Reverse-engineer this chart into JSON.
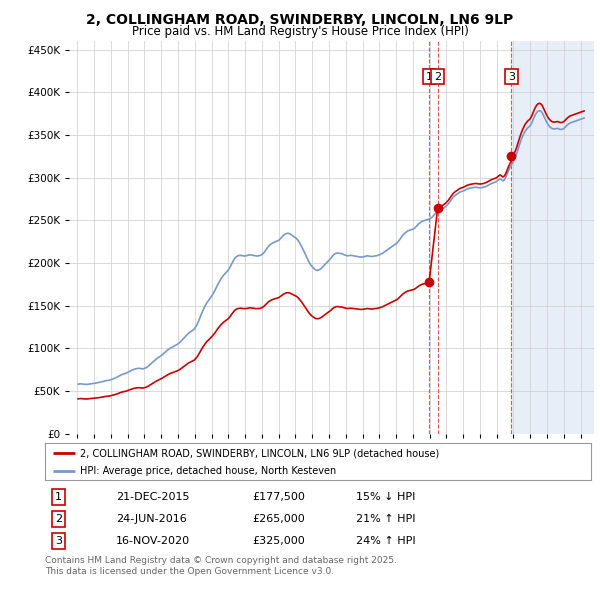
{
  "title": "2, COLLINGHAM ROAD, SWINDERBY, LINCOLN, LN6 9LP",
  "subtitle": "Price paid vs. HM Land Registry's House Price Index (HPI)",
  "title_fontsize": 10,
  "subtitle_fontsize": 8.5,
  "background_color": "#ffffff",
  "plot_bg_color": "#ffffff",
  "shade_bg_color": "#e8eef8",
  "ylim": [
    0,
    460000
  ],
  "yticks": [
    0,
    50000,
    100000,
    150000,
    200000,
    250000,
    300000,
    350000,
    400000,
    450000
  ],
  "xmin": 1994.5,
  "xmax": 2025.8,
  "grid_color": "#cccccc",
  "red_line_color": "#cc0000",
  "blue_line_color": "#7799cc",
  "annotation_box_color": "#cc0000",
  "dashed_line_color": "#dd4444",
  "transactions": [
    {
      "id": 1,
      "year": 2015.97,
      "price": 177500
    },
    {
      "id": 2,
      "year": 2016.48,
      "price": 265000
    },
    {
      "id": 3,
      "year": 2020.88,
      "price": 325000
    }
  ],
  "shade_start": 2020.88,
  "table_rows": [
    [
      1,
      "21-DEC-2015",
      "£177,500",
      "15% ↓ HPI"
    ],
    [
      2,
      "24-JUN-2016",
      "£265,000",
      "21% ↑ HPI"
    ],
    [
      3,
      "16-NOV-2020",
      "£325,000",
      "24% ↑ HPI"
    ]
  ],
  "legend_red_label": "2, COLLINGHAM ROAD, SWINDERBY, LINCOLN, LN6 9LP (detached house)",
  "legend_blue_label": "HPI: Average price, detached house, North Kesteven",
  "footer_text": "Contains HM Land Registry data © Crown copyright and database right 2025.\nThis data is licensed under the Open Government Licence v3.0.",
  "hpi_index": {
    "1995-01": 100.0,
    "1995-02": 100.5,
    "1995-03": 100.8,
    "1995-04": 100.3,
    "1995-05": 100.1,
    "1995-06": 99.8,
    "1995-07": 99.5,
    "1995-08": 99.9,
    "1995-09": 100.2,
    "1995-10": 100.6,
    "1995-11": 101.0,
    "1995-12": 101.3,
    "1996-01": 101.8,
    "1996-02": 102.3,
    "1996-03": 103.0,
    "1996-04": 103.5,
    "1996-05": 104.2,
    "1996-06": 105.0,
    "1996-07": 105.8,
    "1996-08": 106.5,
    "1996-09": 107.0,
    "1996-10": 107.5,
    "1996-11": 108.0,
    "1996-12": 108.5,
    "1997-01": 109.5,
    "1997-02": 110.5,
    "1997-03": 111.8,
    "1997-04": 113.0,
    "1997-05": 114.5,
    "1997-06": 116.0,
    "1997-07": 117.5,
    "1997-08": 119.0,
    "1997-09": 120.0,
    "1997-10": 121.0,
    "1997-11": 122.0,
    "1997-12": 123.0,
    "1998-01": 124.5,
    "1998-02": 126.0,
    "1998-03": 127.5,
    "1998-04": 129.0,
    "1998-05": 130.0,
    "1998-06": 131.0,
    "1998-07": 131.5,
    "1998-08": 132.0,
    "1998-09": 132.0,
    "1998-10": 131.5,
    "1998-11": 131.0,
    "1998-12": 131.5,
    "1999-01": 132.5,
    "1999-02": 134.0,
    "1999-03": 136.0,
    "1999-04": 138.5,
    "1999-05": 141.0,
    "1999-06": 143.5,
    "1999-07": 146.0,
    "1999-08": 148.5,
    "1999-09": 151.0,
    "1999-10": 153.0,
    "1999-11": 155.0,
    "1999-12": 157.0,
    "2000-01": 159.0,
    "2000-02": 161.5,
    "2000-03": 164.0,
    "2000-04": 166.5,
    "2000-05": 169.0,
    "2000-06": 171.0,
    "2000-07": 173.0,
    "2000-08": 174.5,
    "2000-09": 176.0,
    "2000-10": 177.5,
    "2000-11": 179.0,
    "2000-12": 180.5,
    "2001-01": 182.5,
    "2001-02": 185.0,
    "2001-03": 188.0,
    "2001-04": 191.0,
    "2001-05": 194.0,
    "2001-06": 197.0,
    "2001-07": 200.0,
    "2001-08": 203.0,
    "2001-09": 205.0,
    "2001-10": 207.0,
    "2001-11": 209.0,
    "2001-12": 211.0,
    "2002-01": 215.0,
    "2002-02": 220.0,
    "2002-03": 226.0,
    "2002-04": 233.0,
    "2002-05": 240.0,
    "2002-06": 247.0,
    "2002-07": 253.0,
    "2002-08": 259.0,
    "2002-09": 264.0,
    "2002-10": 268.0,
    "2002-11": 272.0,
    "2002-12": 276.0,
    "2003-01": 280.0,
    "2003-02": 285.0,
    "2003-03": 290.0,
    "2003-04": 296.0,
    "2003-05": 302.0,
    "2003-06": 307.0,
    "2003-07": 312.0,
    "2003-08": 316.0,
    "2003-09": 320.0,
    "2003-10": 323.0,
    "2003-11": 326.0,
    "2003-12": 329.0,
    "2004-01": 333.0,
    "2004-02": 338.0,
    "2004-03": 344.0,
    "2004-04": 349.0,
    "2004-05": 354.0,
    "2004-06": 357.0,
    "2004-07": 359.0,
    "2004-08": 360.0,
    "2004-09": 360.5,
    "2004-10": 360.0,
    "2004-11": 359.5,
    "2004-12": 359.0,
    "2005-01": 359.5,
    "2005-02": 360.0,
    "2005-03": 361.0,
    "2005-04": 361.5,
    "2005-05": 361.0,
    "2005-06": 360.5,
    "2005-07": 360.0,
    "2005-08": 359.5,
    "2005-09": 359.0,
    "2005-10": 359.5,
    "2005-11": 360.0,
    "2005-12": 361.0,
    "2006-01": 363.0,
    "2006-02": 366.0,
    "2006-03": 370.0,
    "2006-04": 374.0,
    "2006-05": 378.0,
    "2006-06": 381.0,
    "2006-07": 383.0,
    "2006-08": 385.0,
    "2006-09": 386.5,
    "2006-10": 388.0,
    "2006-11": 389.0,
    "2006-12": 390.0,
    "2007-01": 392.0,
    "2007-02": 395.0,
    "2007-03": 398.0,
    "2007-04": 401.0,
    "2007-05": 403.0,
    "2007-06": 404.5,
    "2007-07": 405.0,
    "2007-08": 404.5,
    "2007-09": 403.0,
    "2007-10": 401.0,
    "2007-11": 399.0,
    "2007-12": 397.0,
    "2008-01": 395.0,
    "2008-02": 392.0,
    "2008-03": 388.0,
    "2008-04": 383.0,
    "2008-05": 378.0,
    "2008-06": 372.0,
    "2008-07": 366.0,
    "2008-08": 360.0,
    "2008-09": 354.0,
    "2008-10": 348.0,
    "2008-11": 343.0,
    "2008-12": 339.0,
    "2009-01": 336.0,
    "2009-02": 333.0,
    "2009-03": 331.0,
    "2009-04": 330.0,
    "2009-05": 330.5,
    "2009-06": 332.0,
    "2009-07": 334.0,
    "2009-08": 337.0,
    "2009-09": 340.0,
    "2009-10": 343.0,
    "2009-11": 346.0,
    "2009-12": 349.0,
    "2010-01": 352.0,
    "2010-02": 355.0,
    "2010-03": 359.0,
    "2010-04": 362.0,
    "2010-05": 364.0,
    "2010-06": 365.0,
    "2010-07": 365.0,
    "2010-08": 364.5,
    "2010-09": 364.0,
    "2010-10": 363.5,
    "2010-11": 362.0,
    "2010-12": 361.0,
    "2011-01": 360.0,
    "2011-02": 359.5,
    "2011-03": 360.0,
    "2011-04": 360.5,
    "2011-05": 360.0,
    "2011-06": 359.5,
    "2011-07": 359.0,
    "2011-08": 358.5,
    "2011-09": 358.0,
    "2011-10": 357.5,
    "2011-11": 357.0,
    "2011-12": 357.0,
    "2012-01": 357.5,
    "2012-02": 358.0,
    "2012-03": 359.0,
    "2012-04": 359.5,
    "2012-05": 359.0,
    "2012-06": 358.5,
    "2012-07": 358.0,
    "2012-08": 358.5,
    "2012-09": 359.0,
    "2012-10": 359.5,
    "2012-11": 360.0,
    "2012-12": 361.0,
    "2013-01": 362.0,
    "2013-02": 363.5,
    "2013-03": 365.0,
    "2013-04": 367.0,
    "2013-05": 369.0,
    "2013-06": 371.0,
    "2013-07": 373.0,
    "2013-08": 375.0,
    "2013-09": 377.0,
    "2013-10": 379.0,
    "2013-11": 381.0,
    "2013-12": 383.0,
    "2014-01": 385.0,
    "2014-02": 388.0,
    "2014-03": 392.0,
    "2014-04": 396.0,
    "2014-05": 400.0,
    "2014-06": 403.0,
    "2014-07": 406.0,
    "2014-08": 408.0,
    "2014-09": 410.0,
    "2014-10": 411.0,
    "2014-11": 412.0,
    "2014-12": 413.0,
    "2015-01": 414.0,
    "2015-02": 416.0,
    "2015-03": 419.0,
    "2015-04": 422.0,
    "2015-05": 425.0,
    "2015-06": 427.0,
    "2015-07": 429.0,
    "2015-08": 430.0,
    "2015-09": 431.0,
    "2015-10": 432.0,
    "2015-11": 433.0,
    "2015-12": 433.5,
    "2016-01": 435.0,
    "2016-02": 437.0,
    "2016-03": 440.0,
    "2016-04": 443.0,
    "2016-05": 446.0,
    "2016-06": 448.0,
    "2016-07": 450.0,
    "2016-08": 451.5,
    "2016-09": 453.0,
    "2016-10": 455.0,
    "2016-11": 457.0,
    "2016-12": 459.0,
    "2017-01": 462.0,
    "2017-02": 465.0,
    "2017-03": 469.0,
    "2017-04": 473.0,
    "2017-05": 477.0,
    "2017-06": 480.0,
    "2017-07": 482.0,
    "2017-08": 484.0,
    "2017-09": 486.0,
    "2017-10": 488.0,
    "2017-11": 489.0,
    "2017-12": 490.0,
    "2018-01": 491.0,
    "2018-02": 492.5,
    "2018-03": 494.0,
    "2018-04": 495.0,
    "2018-05": 496.0,
    "2018-06": 496.5,
    "2018-07": 497.0,
    "2018-08": 497.5,
    "2018-09": 498.0,
    "2018-10": 498.0,
    "2018-11": 497.5,
    "2018-12": 497.0,
    "2019-01": 497.0,
    "2019-02": 497.5,
    "2019-03": 498.0,
    "2019-04": 499.0,
    "2019-05": 500.0,
    "2019-06": 501.5,
    "2019-07": 503.0,
    "2019-08": 504.5,
    "2019-09": 506.0,
    "2019-10": 507.0,
    "2019-11": 508.0,
    "2019-12": 509.0,
    "2020-01": 511.0,
    "2020-02": 513.5,
    "2020-03": 515.0,
    "2020-04": 513.0,
    "2020-05": 511.0,
    "2020-06": 513.0,
    "2020-07": 518.0,
    "2020-08": 525.0,
    "2020-09": 532.0,
    "2020-10": 538.0,
    "2020-11": 543.0,
    "2020-12": 548.0,
    "2021-01": 554.0,
    "2021-02": 560.0,
    "2021-03": 568.0,
    "2021-04": 577.0,
    "2021-05": 586.0,
    "2021-06": 594.0,
    "2021-07": 601.0,
    "2021-08": 607.0,
    "2021-09": 612.0,
    "2021-10": 616.0,
    "2021-11": 619.0,
    "2021-12": 621.0,
    "2022-01": 625.0,
    "2022-02": 631.0,
    "2022-03": 638.0,
    "2022-04": 644.0,
    "2022-05": 649.0,
    "2022-06": 652.0,
    "2022-07": 653.0,
    "2022-08": 652.0,
    "2022-09": 649.0,
    "2022-10": 643.0,
    "2022-11": 637.0,
    "2022-12": 631.0,
    "2023-01": 626.0,
    "2023-02": 622.0,
    "2023-03": 619.0,
    "2023-04": 617.0,
    "2023-05": 616.0,
    "2023-06": 616.0,
    "2023-07": 616.5,
    "2023-08": 617.0,
    "2023-09": 616.0,
    "2023-10": 615.0,
    "2023-11": 615.0,
    "2023-12": 616.0,
    "2024-01": 618.0,
    "2024-02": 621.0,
    "2024-03": 624.0,
    "2024-04": 626.0,
    "2024-05": 628.0,
    "2024-06": 629.0,
    "2024-07": 630.0,
    "2024-08": 631.0,
    "2024-09": 632.0,
    "2024-10": 633.0,
    "2024-11": 634.0,
    "2024-12": 635.0,
    "2025-01": 636.0,
    "2025-02": 637.0,
    "2025-03": 638.0
  }
}
